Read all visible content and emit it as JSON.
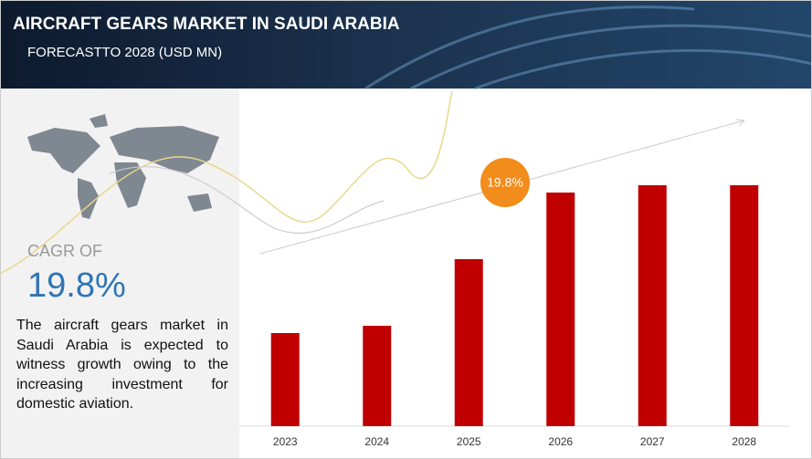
{
  "chart_data": {
    "type": "bar",
    "title": "AIRCRAFT GEARS MARKET IN SAUDI ARABIA",
    "subtitle": "FORECASTTO 2028 (USD MN)",
    "categories": [
      "2023",
      "2024",
      "2025",
      "2026",
      "2027",
      "2028"
    ],
    "values": [
      102,
      110,
      183,
      256,
      264,
      264
    ],
    "color": "#c00000",
    "ylim": [
      0,
      300
    ],
    "annotation": "19.8%"
  },
  "sidebar": {
    "cagr_label": "CAGR OF",
    "cagr_value": "19.8%",
    "description": "The aircraft gears market in Saudi Arabia is expected to witness growth owing to the increasing investment for domestic aviation."
  }
}
